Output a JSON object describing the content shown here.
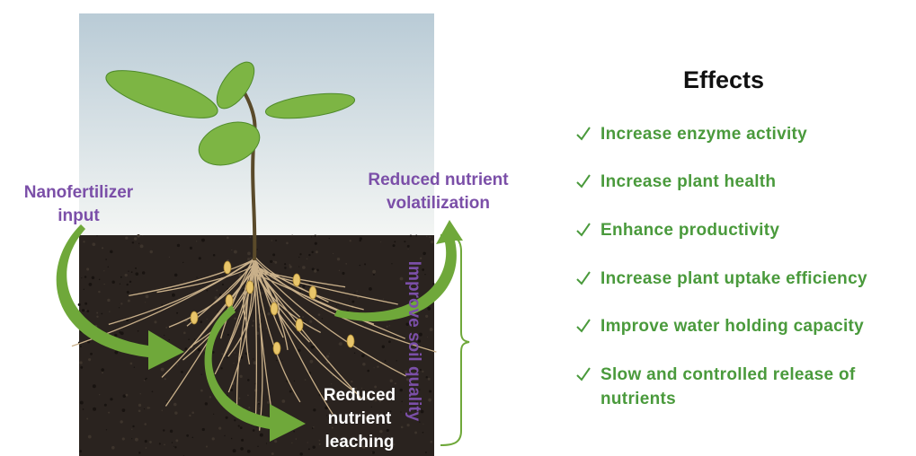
{
  "labels": {
    "input": "Nanofertilizer input",
    "volatilization": "Reduced nutrient volatilization",
    "leaching": "Reduced nutrient leaching",
    "soil": "Improve soil quality"
  },
  "effects": {
    "title": "Effects",
    "items": [
      "Increase enzyme activity",
      "Increase plant health",
      "Enhance productivity",
      "Increase plant uptake efficiency",
      "Improve water holding capacity",
      "Slow and controlled release of nutrients"
    ]
  }
}
